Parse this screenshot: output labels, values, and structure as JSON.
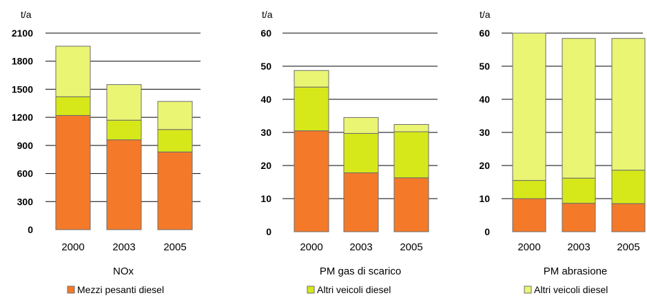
{
  "colors": {
    "Mezzi pesanti diesel": "#f47a2a",
    "Altri veicoli diesel": "#d6e81a",
    "Altri veicoli diesel (light)": "#eaf574",
    "gridline": "#000000",
    "bar_edge": "#6b6b6b"
  },
  "chart_data": [
    {
      "type": "bar",
      "stacked": true,
      "title": "NOx",
      "ylabel": "t/a",
      "ylim": [
        0,
        2100
      ],
      "yticks": [
        0,
        300,
        600,
        900,
        1200,
        1500,
        1800,
        2100
      ],
      "categories": [
        "2000",
        "2003",
        "2005"
      ],
      "legend_label": "Mezzi pesanti diesel",
      "series": [
        {
          "color_key": "Mezzi pesanti diesel",
          "values": [
            1220,
            960,
            830
          ]
        },
        {
          "color_key": "Altri veicoli diesel",
          "values": [
            200,
            210,
            240
          ]
        },
        {
          "color_key": "Altri veicoli diesel (light)",
          "values": [
            540,
            380,
            300
          ]
        }
      ]
    },
    {
      "type": "bar",
      "stacked": true,
      "title": "PM gas di scarico",
      "ylabel": "t/a",
      "ylim": [
        0,
        60
      ],
      "yticks": [
        0,
        10,
        20,
        30,
        40,
        50,
        60
      ],
      "categories": [
        "2000",
        "2003",
        "2005"
      ],
      "legend_label": "Altri veicoli diesel",
      "series": [
        {
          "color_key": "Mezzi pesanti diesel",
          "values": [
            30.5,
            17.8,
            16.3
          ]
        },
        {
          "color_key": "Altri veicoli diesel",
          "values": [
            13.2,
            11.9,
            13.9
          ]
        },
        {
          "color_key": "Altri veicoli diesel (light)",
          "values": [
            5.0,
            4.8,
            2.2
          ]
        }
      ]
    },
    {
      "type": "bar",
      "stacked": true,
      "title": "PM abrasione",
      "ylabel": "t/a",
      "ylim": [
        0,
        60
      ],
      "yticks": [
        0,
        10,
        20,
        30,
        40,
        50,
        60
      ],
      "categories": [
        "2000",
        "2003",
        "2005"
      ],
      "legend_label": "Altri veicoli diesel",
      "series": [
        {
          "color_key": "Mezzi pesanti diesel",
          "values": [
            10.0,
            8.6,
            8.5
          ]
        },
        {
          "color_key": "Altri veicoli diesel",
          "values": [
            5.5,
            7.6,
            10.1
          ]
        },
        {
          "color_key": "Altri veicoli diesel (light)",
          "values": [
            44.5,
            42.2,
            39.8
          ]
        }
      ]
    }
  ]
}
